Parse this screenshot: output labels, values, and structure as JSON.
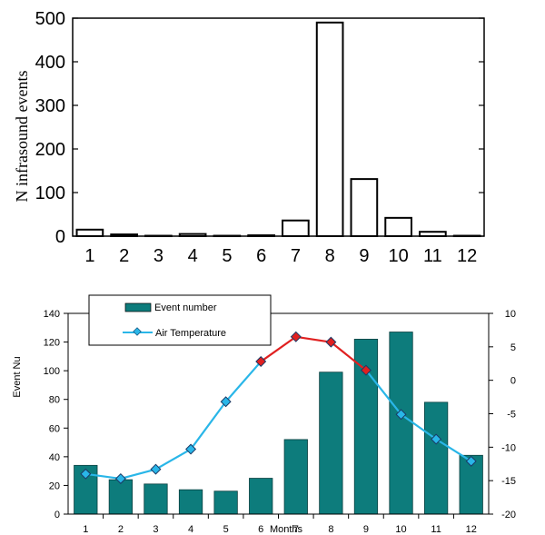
{
  "chart_data": [
    {
      "type": "bar",
      "ylabel": "N infrasound events",
      "categories": [
        "1",
        "2",
        "3",
        "4",
        "5",
        "6",
        "7",
        "8",
        "9",
        "10",
        "11",
        "12"
      ],
      "values": [
        15,
        4,
        1,
        5,
        1,
        2,
        36,
        490,
        131,
        42,
        10,
        1
      ],
      "ylim": [
        0,
        500
      ],
      "yticks": [
        "0",
        "100",
        "200",
        "300",
        "400",
        "500"
      ],
      "bar_color": "#ffffff",
      "bar_edge": "#000000",
      "grid": false
    },
    {
      "type": "bar+line",
      "ylabel": "Event Nu",
      "xlabel": "Months",
      "categories": [
        "1",
        "2",
        "3",
        "4",
        "5",
        "6",
        "7",
        "8",
        "9",
        "10",
        "11",
        "12"
      ],
      "series": [
        {
          "name": "Event number",
          "axis": "left",
          "type": "bar",
          "color": "#0d7c7c",
          "values": [
            34,
            24,
            21,
            17,
            16,
            25,
            52,
            99,
            122,
            127,
            78,
            41
          ]
        },
        {
          "name": "Air Temperature",
          "axis": "right",
          "type": "line",
          "color": "#29b6e8",
          "highlight_color": "#e02020",
          "highlight_range": [
            6,
            9
          ],
          "marker": "diamond",
          "values": [
            -14.0,
            -14.7,
            -13.3,
            -10.3,
            -3.2,
            2.8,
            6.5,
            5.7,
            1.5,
            -5.1,
            -8.8,
            -12.1
          ]
        }
      ],
      "ylim_left": [
        0,
        140
      ],
      "yticks_left": [
        "0",
        "20",
        "40",
        "60",
        "80",
        "100",
        "120",
        "140"
      ],
      "ylim_right": [
        -20,
        10
      ],
      "yticks_right": [
        "10",
        "5",
        "0",
        "-5",
        "-10",
        "-15",
        "-20"
      ],
      "legend_position": "top-left",
      "grid": false
    }
  ]
}
